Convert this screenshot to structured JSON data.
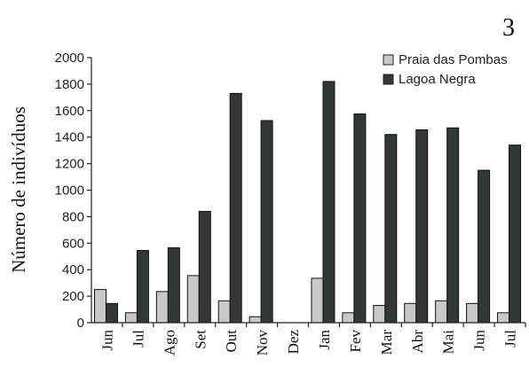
{
  "panel_label": "3",
  "chart_data": {
    "type": "bar",
    "categories": [
      "Jun",
      "Jul",
      "Ago",
      "Set",
      "Out",
      "Nov",
      "Dez",
      "Jan",
      "Fev",
      "Mar",
      "Abr",
      "Mai",
      "Jun",
      "Jul"
    ],
    "series": [
      {
        "name": "Praia das Pombas",
        "color": "#c8c8c8",
        "values": [
          250,
          75,
          235,
          355,
          165,
          45,
          0,
          335,
          75,
          130,
          145,
          165,
          145,
          75
        ]
      },
      {
        "name": "Lagoa Negra",
        "color": "#333836",
        "values": [
          145,
          545,
          565,
          840,
          1730,
          1525,
          0,
          1820,
          1575,
          1420,
          1455,
          1470,
          1150,
          1340
        ]
      }
    ],
    "xlabel": "",
    "ylabel": "Número de indivíduos",
    "ylim": [
      0,
      2000
    ],
    "yticks": [
      0,
      200,
      400,
      600,
      800,
      1000,
      1200,
      1400,
      1600,
      1800,
      2000
    ],
    "grid": false,
    "legend_position": "top-right"
  }
}
